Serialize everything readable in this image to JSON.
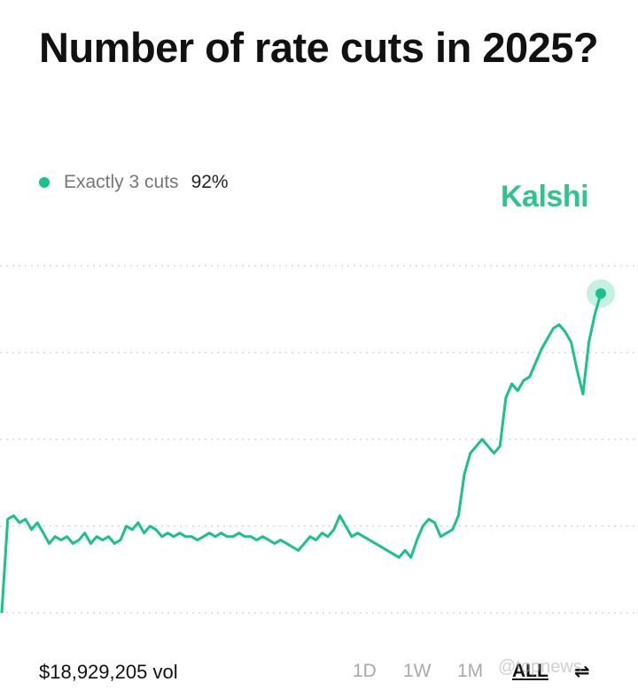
{
  "title": "Number of rate cuts in 2025?",
  "brand": "Kalshi",
  "legend": {
    "label": "Exactly 3 cuts",
    "value": "92%",
    "color": "#18c28c"
  },
  "volume": "$18,929,205 vol",
  "ranges": [
    {
      "label": "1D",
      "active": false
    },
    {
      "label": "1W",
      "active": false
    },
    {
      "label": "1M",
      "active": false
    },
    {
      "label": "ALL",
      "active": true
    }
  ],
  "watermark": "@topnews",
  "chart_data": {
    "type": "line",
    "title": "Number of rate cuts in 2025?",
    "xlabel": "",
    "ylabel": "",
    "ylim": [
      0,
      100
    ],
    "grid": true,
    "series": [
      {
        "name": "Exactly 3 cuts",
        "color": "#18c28c",
        "values": [
          0,
          27,
          28,
          26,
          27,
          24,
          26,
          23,
          20,
          22,
          21,
          22,
          20,
          21,
          23,
          20,
          22,
          21,
          22,
          20,
          21,
          25,
          24,
          26,
          23,
          25,
          24,
          22,
          23,
          22,
          23,
          22,
          22,
          21,
          22,
          23,
          22,
          23,
          22,
          22,
          23,
          22,
          22,
          21,
          22,
          21,
          20,
          21,
          20,
          19,
          18,
          20,
          22,
          21,
          23,
          22,
          24,
          28,
          25,
          22,
          23,
          22,
          21,
          20,
          19,
          18,
          17,
          16,
          18,
          16,
          21,
          25,
          27,
          26,
          22,
          23,
          24,
          28,
          40,
          46,
          48,
          50,
          48,
          46,
          48,
          62,
          66,
          64,
          67,
          68,
          72,
          76,
          79,
          82,
          83,
          81,
          78,
          70,
          63,
          78,
          86,
          92
        ]
      }
    ]
  }
}
